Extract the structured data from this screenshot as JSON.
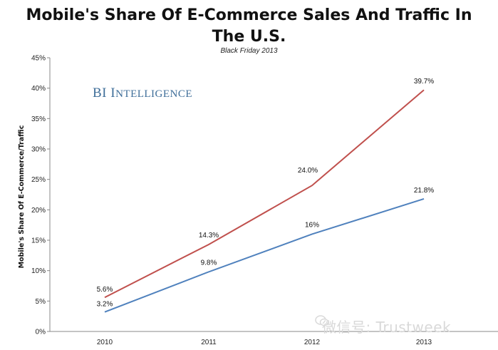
{
  "title_line1": "Mobile's Share Of E-Commerce Sales And Traffic In",
  "title_line2": "The U.S.",
  "subtitle": "Black Friday 2013",
  "brand": {
    "prefix": "BI I",
    "rest": "NTELLIGENCE"
  },
  "watermark": "微信号: Trustweek",
  "colors": {
    "series_red": "#c0504d",
    "series_blue": "#4f81bd",
    "axis": "#888888",
    "brand": "#3f6e99"
  },
  "chart_data": {
    "type": "line",
    "title": "Mobile's Share Of E-Commerce Sales And Traffic In The U.S.",
    "subtitle": "Black Friday 2013",
    "ylabel": "Mobile's Share Of E-Commerce/Traffic",
    "xlabel": "",
    "x": [
      "2010",
      "2011",
      "2012",
      "2013"
    ],
    "ylim": [
      0,
      45
    ],
    "yticks": [
      "0%",
      "5%",
      "10%",
      "15%",
      "20%",
      "25%",
      "30%",
      "35%",
      "40%",
      "45%"
    ],
    "grid": false,
    "legend": "none",
    "series": [
      {
        "values": [
          5.6,
          14.3,
          24.0,
          39.7
        ],
        "labels": [
          "5.6%",
          "14.3%",
          "24.0%",
          "39.7%"
        ],
        "color": "#c0504d"
      },
      {
        "values": [
          3.2,
          9.8,
          16,
          21.8
        ],
        "labels": [
          "3.2%",
          "9.8%",
          "16%",
          "21.8%"
        ],
        "color": "#4f81bd"
      }
    ]
  }
}
